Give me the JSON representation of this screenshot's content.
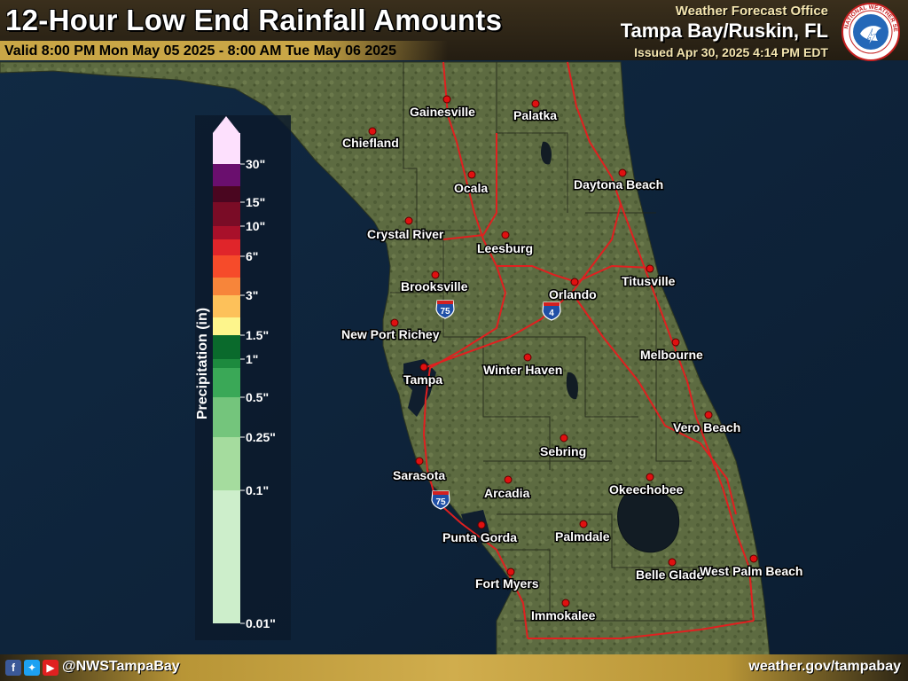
{
  "header": {
    "title": "12-Hour Low End Rainfall Amounts",
    "valid": "Valid 8:00 PM Mon May 05 2025 - 8:00 AM Tue May 06 2025",
    "office_label": "Weather Forecast Office",
    "office_name": "Tampa Bay/Ruskin, FL",
    "issued": "Issued Apr 30, 2025 4:14 PM EDT",
    "logo_text": "NATIONAL WEATHER SERVICE"
  },
  "legend": {
    "title": "Precipitation (in)",
    "ticks": [
      "30\"",
      "15\"",
      "10\"",
      "6\"",
      "3\"",
      "1.5\"",
      "1\"",
      "0.5\"",
      "0.25\"",
      "0.1\"",
      "0.01\""
    ],
    "colors": [
      "#fde0fd",
      "#6a0f6e",
      "#4a0620",
      "#7a0c26",
      "#a8102a",
      "#e0252a",
      "#f64b2a",
      "#f7853a",
      "#fdc15a",
      "#fdf58c",
      "#0a6a2c",
      "#1d8a3e",
      "#3aa857",
      "#74c57c",
      "#a5dc9e",
      "#cdeecb"
    ]
  },
  "cities": [
    {
      "name": "Gainesville"
    },
    {
      "name": "Palatka"
    },
    {
      "name": "Chiefland"
    },
    {
      "name": "Ocala"
    },
    {
      "name": "Daytona Beach"
    },
    {
      "name": "Crystal River"
    },
    {
      "name": "Leesburg"
    },
    {
      "name": "Brooksville"
    },
    {
      "name": "Orlando"
    },
    {
      "name": "Titusville"
    },
    {
      "name": "New Port Richey"
    },
    {
      "name": "Melbourne"
    },
    {
      "name": "Tampa"
    },
    {
      "name": "Winter Haven"
    },
    {
      "name": "Vero Beach"
    },
    {
      "name": "Sebring"
    },
    {
      "name": "Sarasota"
    },
    {
      "name": "Arcadia"
    },
    {
      "name": "Okeechobee"
    },
    {
      "name": "Punta Gorda"
    },
    {
      "name": "Palmdale"
    },
    {
      "name": "Belle Glade"
    },
    {
      "name": "West Palm Beach"
    },
    {
      "name": "Fort Myers"
    },
    {
      "name": "Immokalee"
    }
  ],
  "shields": [
    {
      "label": "75",
      "type": "interstate"
    },
    {
      "label": "4",
      "type": "interstate"
    },
    {
      "label": "75",
      "type": "interstate"
    }
  ],
  "footer": {
    "handle": "@NWSTampaBay",
    "website": "weather.gov/tampabay",
    "icons": [
      "facebook-icon",
      "twitter-icon",
      "youtube-icon"
    ]
  },
  "colors": {
    "header_gold": "#c9a646",
    "road": "#e02020",
    "city_dot": "#e01010"
  }
}
